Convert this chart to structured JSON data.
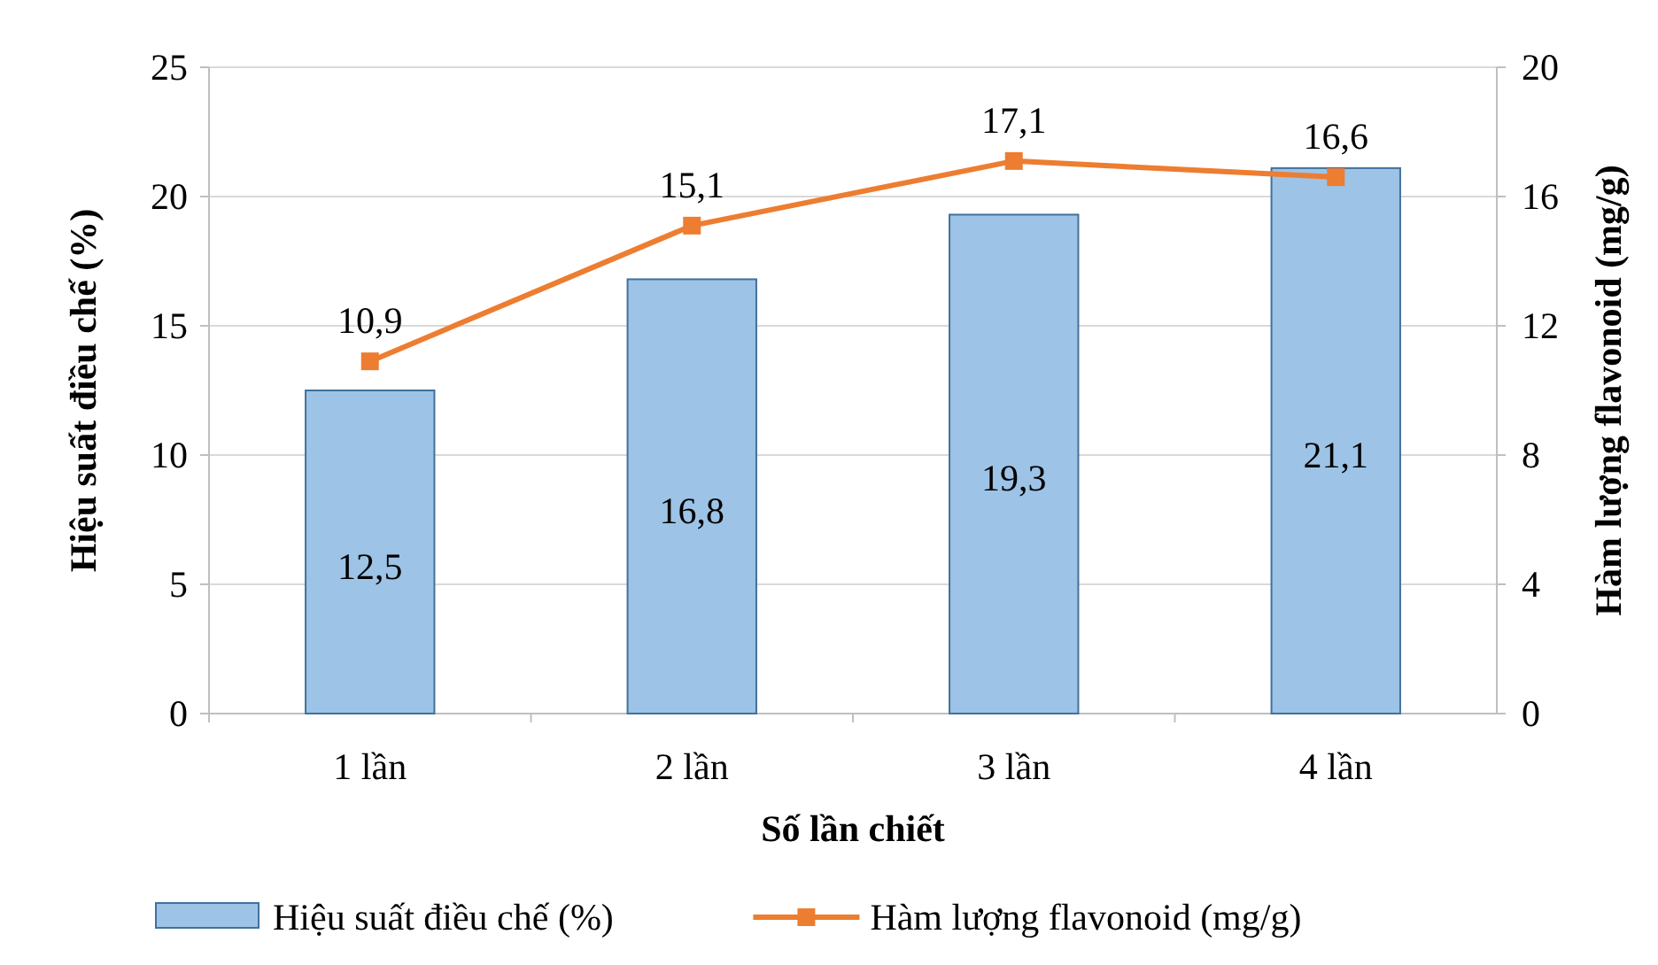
{
  "chart_data": {
    "type": "bar",
    "xlabel": "Số lần chiết",
    "ylabel": "Hiệu suất điều chế (%)",
    "y2label": "Hàm lượng flavonoid (mg/g)",
    "categories": [
      "1 lần",
      "2 lần",
      "3 lần",
      "4 lần"
    ],
    "series": [
      {
        "name": "Hiệu suất điều chế (%)",
        "color": "#9dc3e6",
        "values": [
          12.5,
          16.8,
          19.3,
          21.1
        ],
        "value_labels": [
          "12,5",
          "16,8",
          "19,3",
          "21,1"
        ]
      },
      {
        "name": "Hàm lượng flavonoid (mg/g)",
        "type": "line",
        "axis": "y2",
        "color": "#ed7d31",
        "values": [
          10.9,
          15.1,
          17.1,
          16.6
        ],
        "value_labels": [
          "10,9",
          "15,1",
          "17,1",
          "16,6"
        ]
      }
    ],
    "ylim": [
      0,
      25
    ],
    "yticks": [
      0,
      5,
      10,
      15,
      20,
      25
    ],
    "y2lim": [
      0,
      20
    ],
    "y2ticks": [
      0,
      4,
      8,
      12,
      16,
      20
    ],
    "grid": "y",
    "legend": "bottom",
    "marker": "square"
  }
}
